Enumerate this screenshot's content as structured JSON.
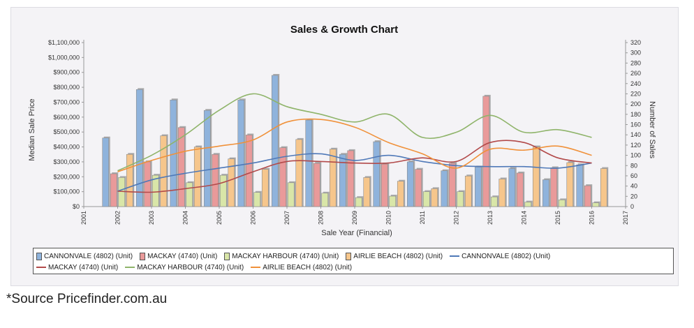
{
  "source_note": "*Source Pricefinder.com.au",
  "chart_data": {
    "type": "bar",
    "title": "Sales & Growth Chart",
    "xlabel": "Sale Year (Financial)",
    "ylabel": "Median Sale Price",
    "y2label": "Number of Sales",
    "ylim": [
      0,
      1100000
    ],
    "y2lim": [
      0,
      320
    ],
    "y_ticks": [
      "$0",
      "$100,000",
      "$200,000",
      "$300,000",
      "$400,000",
      "$500,000",
      "$600,000",
      "$700,000",
      "$800,000",
      "$900,000",
      "$1,000,000",
      "$1,100,000"
    ],
    "y2_ticks": [
      "0",
      "20",
      "40",
      "60",
      "80",
      "100",
      "120",
      "140",
      "160",
      "180",
      "200",
      "220",
      "240",
      "260",
      "280",
      "300",
      "320"
    ],
    "categories": [
      "2001",
      "2002",
      "2003",
      "2004",
      "2005",
      "2006",
      "2007",
      "2008",
      "2009",
      "2010",
      "2011",
      "2012",
      "2013",
      "2014",
      "2015",
      "2016",
      "2017"
    ],
    "bar_series": [
      {
        "name": "CANNONVALE (4802) (Unit)",
        "color": "#8fb3dc",
        "values": [
          null,
          460000,
          785000,
          715000,
          645000,
          715000,
          880000,
          580000,
          350000,
          435000,
          300000,
          240000,
          265000,
          255000,
          180000,
          280000,
          null
        ]
      },
      {
        "name": "MACKAY (4740) (Unit)",
        "color": "#e99a9a",
        "values": [
          null,
          220000,
          300000,
          530000,
          350000,
          480000,
          395000,
          290000,
          375000,
          285000,
          250000,
          290000,
          740000,
          225000,
          260000,
          140000,
          null
        ]
      },
      {
        "name": "MACKAY HARBOUR (4740) (Unit)",
        "color": "#d9e6a8",
        "values": [
          null,
          195000,
          210000,
          160000,
          210000,
          95000,
          160000,
          90000,
          60000,
          70000,
          100000,
          100000,
          65000,
          30000,
          45000,
          25000,
          null
        ]
      },
      {
        "name": "AIRLIE BEACH (4802) (Unit)",
        "color": "#f6c68c",
        "values": [
          null,
          350000,
          475000,
          400000,
          320000,
          250000,
          450000,
          385000,
          195000,
          170000,
          120000,
          205000,
          185000,
          400000,
          295000,
          255000,
          null
        ]
      }
    ],
    "line_series": [
      {
        "name": "CANNONVALE (4802) (Unit)",
        "color": "#4f79b8",
        "values": [
          null,
          30,
          52,
          65,
          75,
          85,
          98,
          103,
          90,
          100,
          88,
          80,
          78,
          78,
          75,
          85,
          null
        ]
      },
      {
        "name": "MACKAY (4740) (Unit)",
        "color": "#b24a4a",
        "values": [
          null,
          30,
          28,
          35,
          45,
          68,
          88,
          88,
          85,
          85,
          95,
          88,
          125,
          125,
          95,
          85,
          null
        ]
      },
      {
        "name": "MACKAY HARBOUR (4740) (Unit)",
        "color": "#8fb46a",
        "values": [
          null,
          70,
          100,
          140,
          188,
          220,
          195,
          180,
          165,
          180,
          135,
          145,
          178,
          145,
          150,
          135,
          null
        ]
      },
      {
        "name": "AIRLIE BEACH (4802) (Unit)",
        "color": "#f0913a",
        "values": [
          null,
          68,
          90,
          108,
          118,
          130,
          165,
          170,
          155,
          125,
          103,
          75,
          112,
          110,
          118,
          100,
          null
        ]
      }
    ],
    "legend_position": "bottom",
    "grid": false
  }
}
